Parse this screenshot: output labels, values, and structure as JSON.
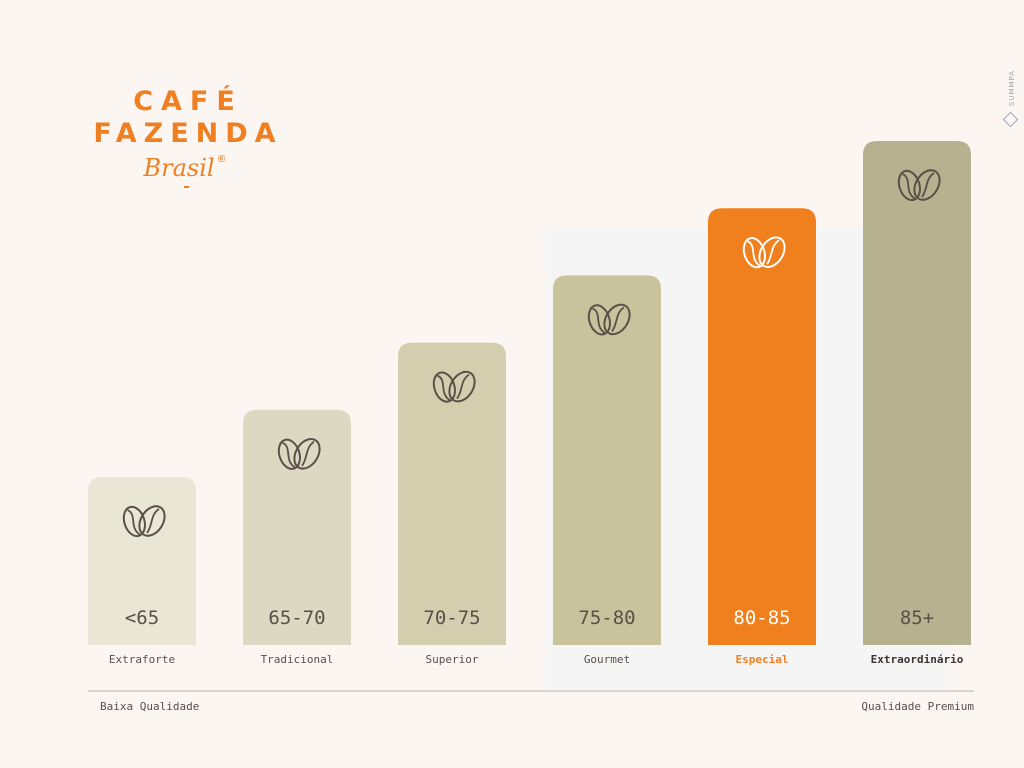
{
  "logo": {
    "line1": "CAFÉ",
    "line2": "FAZENDA",
    "script": "Brasil",
    "registered": "®"
  },
  "side_brand": "SUMMPA",
  "scale": {
    "low_label": "Baixa Qualidade",
    "high_label": "Qualidade Premium"
  },
  "chart_data": {
    "type": "bar",
    "categories": [
      "Extraforte",
      "Tradicional",
      "Superior",
      "Gourmet",
      "Especial",
      "Extraordinário"
    ],
    "value_labels": [
      "<65",
      "65-70",
      "70-75",
      "75-80",
      "80-85",
      "85+"
    ],
    "values": [
      1,
      2,
      3,
      4,
      5,
      6
    ],
    "icon": "coffee-bean-icon",
    "colors": [
      "#eae6d6",
      "#ddd8c2",
      "#d3cead",
      "#c8c39d",
      "#f07f1d",
      "#b6b18e"
    ],
    "highlight_index": 4,
    "emphasis_index": 5,
    "title": "",
    "xlabel": "",
    "ylabel": ""
  }
}
